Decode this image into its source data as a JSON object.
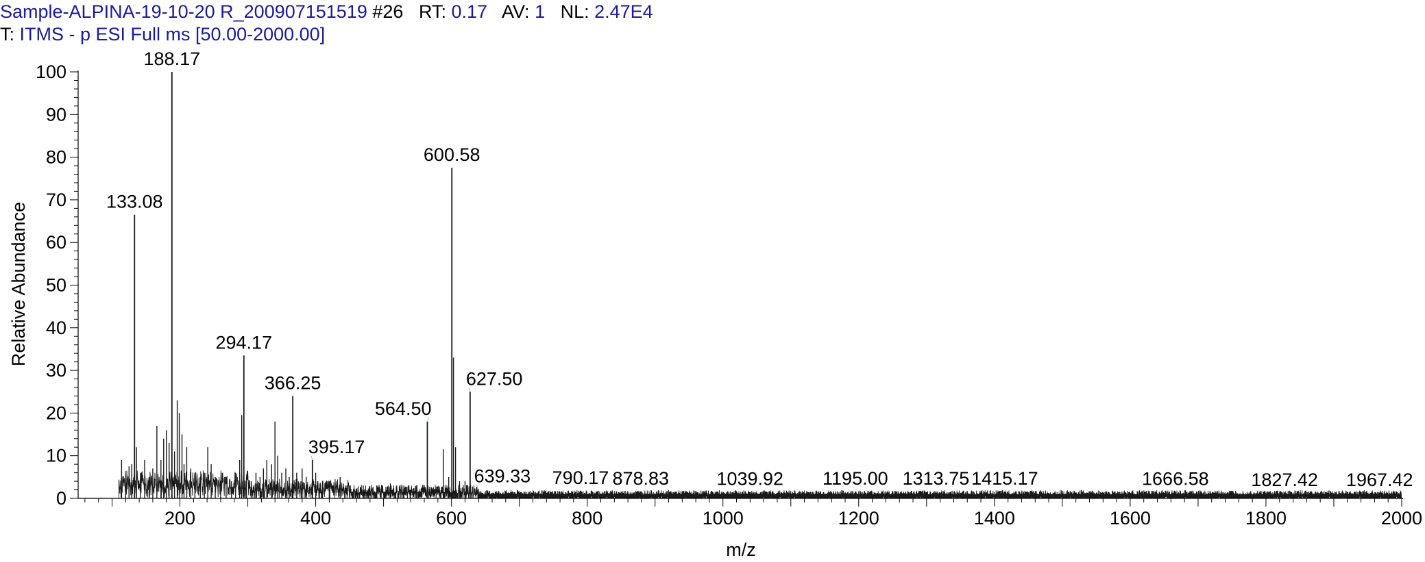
{
  "header": {
    "line1": [
      {
        "text": "Sample-ALPINA-19-10-20 R_200907151519",
        "style": "v"
      },
      {
        "text": " #26",
        "style": "k"
      },
      {
        "text": "   RT: ",
        "style": "k"
      },
      {
        "text": "0.17",
        "style": "v"
      },
      {
        "text": "   AV: ",
        "style": "k"
      },
      {
        "text": "1",
        "style": "v"
      },
      {
        "text": "   NL: ",
        "style": "k"
      },
      {
        "text": "2.47E4",
        "style": "v"
      }
    ],
    "line2": [
      {
        "text": "T: ",
        "style": "k"
      },
      {
        "text": "ITMS - p ESI Full ms [50.00-2000.00]",
        "style": "v"
      }
    ]
  },
  "colors": {
    "header_value": "#1a1a9c",
    "spectrum": "#1a1a1a",
    "axis": "#000000",
    "label_leader": "#8fd18f"
  },
  "chart_data": {
    "type": "line",
    "subtype": "mass-spectrum-stick",
    "xlabel": "m/z",
    "ylabel": "Relative Abundance",
    "xlim": [
      50,
      2000
    ],
    "ylim": [
      0,
      100
    ],
    "xticks": [
      200,
      400,
      600,
      800,
      1000,
      1200,
      1400,
      1600,
      1800,
      2000
    ],
    "yticks": [
      0,
      10,
      20,
      30,
      40,
      50,
      60,
      70,
      80,
      90,
      100
    ],
    "grid": false,
    "spectrum_start_mz": 110,
    "labeled_peaks": [
      {
        "mz": 133.08,
        "label": "133.08",
        "intensity": 66.5
      },
      {
        "mz": 188.17,
        "label": "188.17",
        "intensity": 100
      },
      {
        "mz": 294.17,
        "label": "294.17",
        "intensity": 33.5
      },
      {
        "mz": 366.25,
        "label": "366.25",
        "intensity": 24
      },
      {
        "mz": 395.17,
        "label": "395.17",
        "intensity": 9
      },
      {
        "mz": 564.5,
        "label": "564.50",
        "intensity": 18
      },
      {
        "mz": 600.58,
        "label": "600.58",
        "intensity": 77.5
      },
      {
        "mz": 627.5,
        "label": "627.50",
        "intensity": 25
      },
      {
        "mz": 639.33,
        "label": "639.33",
        "intensity": 2.2
      },
      {
        "mz": 790.17,
        "label": "790.17",
        "intensity": 1.8
      },
      {
        "mz": 878.83,
        "label": "878.83",
        "intensity": 1.6
      },
      {
        "mz": 1039.92,
        "label": "1039.92",
        "intensity": 1.5
      },
      {
        "mz": 1195.0,
        "label": "1195.00",
        "intensity": 1.6
      },
      {
        "mz": 1313.75,
        "label": "1313.75",
        "intensity": 1.6
      },
      {
        "mz": 1415.17,
        "label": "1415.17",
        "intensity": 1.6
      },
      {
        "mz": 1666.58,
        "label": "1666.58",
        "intensity": 1.5
      },
      {
        "mz": 1827.42,
        "label": "1827.42",
        "intensity": 1.3
      },
      {
        "mz": 1967.42,
        "label": "1967.42",
        "intensity": 1.3
      }
    ],
    "other_peaks": [
      {
        "mz": 114,
        "intensity": 9
      },
      {
        "mz": 120,
        "intensity": 4
      },
      {
        "mz": 125,
        "intensity": 7.5
      },
      {
        "mz": 129,
        "intensity": 8
      },
      {
        "mz": 136,
        "intensity": 12
      },
      {
        "mz": 142,
        "intensity": 6
      },
      {
        "mz": 148,
        "intensity": 9
      },
      {
        "mz": 155,
        "intensity": 5
      },
      {
        "mz": 160,
        "intensity": 7
      },
      {
        "mz": 166,
        "intensity": 17
      },
      {
        "mz": 172,
        "intensity": 9
      },
      {
        "mz": 176,
        "intensity": 14
      },
      {
        "mz": 180,
        "intensity": 16
      },
      {
        "mz": 184,
        "intensity": 13
      },
      {
        "mz": 192,
        "intensity": 11
      },
      {
        "mz": 196,
        "intensity": 23
      },
      {
        "mz": 199,
        "intensity": 20
      },
      {
        "mz": 203,
        "intensity": 15
      },
      {
        "mz": 206,
        "intensity": 8
      },
      {
        "mz": 210,
        "intensity": 12
      },
      {
        "mz": 216,
        "intensity": 7
      },
      {
        "mz": 222,
        "intensity": 6
      },
      {
        "mz": 230,
        "intensity": 5
      },
      {
        "mz": 236,
        "intensity": 6
      },
      {
        "mz": 241,
        "intensity": 12
      },
      {
        "mz": 246,
        "intensity": 8
      },
      {
        "mz": 252,
        "intensity": 5
      },
      {
        "mz": 260,
        "intensity": 4
      },
      {
        "mz": 268,
        "intensity": 5
      },
      {
        "mz": 276,
        "intensity": 4
      },
      {
        "mz": 282,
        "intensity": 6
      },
      {
        "mz": 288,
        "intensity": 9
      },
      {
        "mz": 291,
        "intensity": 19.5
      },
      {
        "mz": 298,
        "intensity": 5
      },
      {
        "mz": 305,
        "intensity": 4
      },
      {
        "mz": 312,
        "intensity": 6
      },
      {
        "mz": 318,
        "intensity": 5
      },
      {
        "mz": 323,
        "intensity": 7
      },
      {
        "mz": 328,
        "intensity": 9
      },
      {
        "mz": 335,
        "intensity": 8
      },
      {
        "mz": 340,
        "intensity": 18
      },
      {
        "mz": 344,
        "intensity": 10
      },
      {
        "mz": 350,
        "intensity": 6
      },
      {
        "mz": 356,
        "intensity": 7
      },
      {
        "mz": 361,
        "intensity": 5
      },
      {
        "mz": 372,
        "intensity": 6
      },
      {
        "mz": 380,
        "intensity": 7
      },
      {
        "mz": 386,
        "intensity": 5
      },
      {
        "mz": 400,
        "intensity": 6
      },
      {
        "mz": 410,
        "intensity": 4
      },
      {
        "mz": 420,
        "intensity": 4
      },
      {
        "mz": 436,
        "intensity": 5
      },
      {
        "mz": 450,
        "intensity": 3
      },
      {
        "mz": 470,
        "intensity": 3
      },
      {
        "mz": 490,
        "intensity": 3
      },
      {
        "mz": 510,
        "intensity": 3.5
      },
      {
        "mz": 530,
        "intensity": 3
      },
      {
        "mz": 548,
        "intensity": 3
      },
      {
        "mz": 588,
        "intensity": 11.5
      },
      {
        "mz": 596,
        "intensity": 5
      },
      {
        "mz": 603,
        "intensity": 33
      },
      {
        "mz": 606,
        "intensity": 12
      },
      {
        "mz": 612,
        "intensity": 4
      },
      {
        "mz": 620,
        "intensity": 4
      }
    ]
  }
}
